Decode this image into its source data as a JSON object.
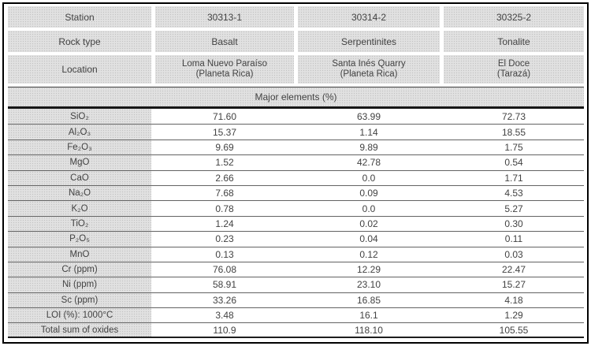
{
  "colors": {
    "frame_border": "#000000",
    "cell_fill_gray": "#d9d9d9",
    "text": "#424242",
    "row_separator": "#636363",
    "band_rule": "#151515"
  },
  "table": {
    "header_rows": [
      {
        "label": "Station",
        "values": [
          "30313-1",
          "30314-2",
          "30325-2"
        ]
      },
      {
        "label": "Rock type",
        "values": [
          "Basalt",
          "Serpentinites",
          "Tonalite"
        ]
      }
    ],
    "location_row": {
      "label": "Location",
      "values": [
        {
          "line1": "Loma Nuevo Paraíso",
          "line2": "(Planeta Rica)"
        },
        {
          "line1": "Santa Inés Quarry",
          "line2": "(Planeta Rica)"
        },
        {
          "line1": "El Doce",
          "line2": "(Tarazá)"
        }
      ]
    },
    "section_title": "Major elements (%)",
    "rows": [
      {
        "label": "SiO₂",
        "values": [
          "71.60",
          "63.99",
          "72.73"
        ]
      },
      {
        "label": "Al₂O₃",
        "values": [
          "15.37",
          "1.14",
          "18.55"
        ]
      },
      {
        "label": "Fe₂O₃",
        "values": [
          "9.69",
          "9.89",
          "1.75"
        ]
      },
      {
        "label": "MgO",
        "values": [
          "1.52",
          "42.78",
          "0.54"
        ]
      },
      {
        "label": "CaO",
        "values": [
          "2.66",
          "0.0",
          "1.71"
        ]
      },
      {
        "label": "Na₂O",
        "values": [
          "7.68",
          "0.09",
          "4.53"
        ]
      },
      {
        "label": "K₂O",
        "values": [
          "0.78",
          "0.0",
          "5.27"
        ]
      },
      {
        "label": "TiO₂",
        "values": [
          "1.24",
          "0.02",
          "0.30"
        ]
      },
      {
        "label": "P₂O₅",
        "values": [
          "0.23",
          "0.04",
          "0.11"
        ]
      },
      {
        "label": "MnO",
        "values": [
          "0.13",
          "0.12",
          "0.03"
        ]
      },
      {
        "label": "Cr (ppm)",
        "values": [
          "76.08",
          "12.29",
          "22.47"
        ]
      },
      {
        "label": "Ni (ppm)",
        "values": [
          "58.91",
          "23.10",
          "15.27"
        ]
      },
      {
        "label": "Sc (ppm)",
        "values": [
          "33.26",
          "16.85",
          "4.18"
        ]
      },
      {
        "label": "LOI (%): 1000°C",
        "values": [
          "3.48",
          "16.1",
          "1.29"
        ]
      },
      {
        "label": "Total sum of oxides",
        "values": [
          "110.9",
          "118.10",
          "105.55"
        ]
      }
    ]
  }
}
